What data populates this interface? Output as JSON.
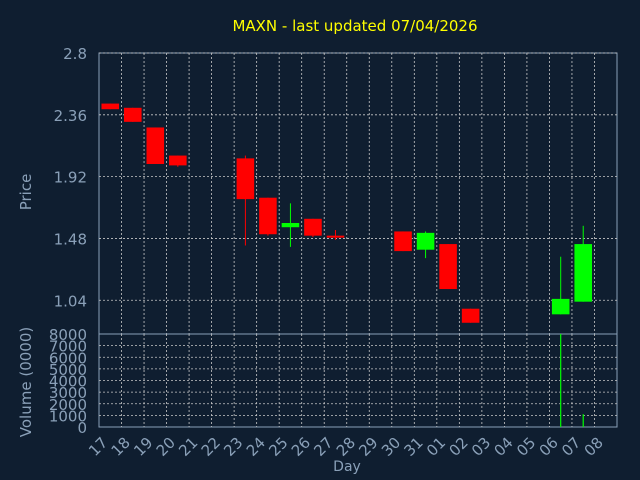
{
  "chart_data": {
    "type": "candlestick",
    "title": "MAXN - last updated 07/04/2026",
    "xlabel": "Day",
    "price_ylabel": "Price",
    "volume_ylabel": "Volume (0000)",
    "price_yticks": [
      "2.8",
      "2.36",
      "1.92",
      "1.48",
      "1.04"
    ],
    "price_ylim": [
      0.8,
      2.8
    ],
    "volume_yticks": [
      "8000",
      "7000",
      "6000",
      "5000",
      "4000",
      "3000",
      "2000",
      "1000",
      "0"
    ],
    "volume_ylim": [
      0,
      8000
    ],
    "x_tick_labels": [
      "17",
      "18",
      "19",
      "20",
      "21",
      "22",
      "23",
      "24",
      "25",
      "26",
      "27",
      "28",
      "29",
      "30",
      "31",
      "01",
      "02",
      "03",
      "04",
      "05",
      "06",
      "07",
      "08"
    ],
    "grid": true,
    "colors": {
      "background": "#0f1e30",
      "plot_background": "#0f1e30",
      "up": "#00ff00",
      "down": "#ff0000",
      "title": "#ffff00",
      "axis_text": "#8aa0b8",
      "grid": "#c8c8c8"
    },
    "candles": [
      {
        "day": "17",
        "open": 2.44,
        "high": 2.44,
        "low": 2.4,
        "close": 2.4
      },
      {
        "day": "18",
        "open": 2.41,
        "high": 2.41,
        "low": 2.31,
        "close": 2.31
      },
      {
        "day": "19",
        "open": 2.27,
        "high": 2.27,
        "low": 2.01,
        "close": 2.01
      },
      {
        "day": "20",
        "open": 2.07,
        "high": 2.07,
        "low": 1.99,
        "close": 2.0
      },
      {
        "day": "23",
        "open": 2.05,
        "high": 2.07,
        "low": 1.43,
        "close": 1.76
      },
      {
        "day": "24",
        "open": 1.77,
        "high": 1.77,
        "low": 1.5,
        "close": 1.51
      },
      {
        "day": "25",
        "open": 1.56,
        "high": 1.73,
        "low": 1.42,
        "close": 1.59
      },
      {
        "day": "26",
        "open": 1.62,
        "high": 1.62,
        "low": 1.49,
        "close": 1.5
      },
      {
        "day": "27",
        "open": 1.5,
        "high": 1.54,
        "low": 1.47,
        "close": 1.49
      },
      {
        "day": "30",
        "open": 1.53,
        "high": 1.53,
        "low": 1.39,
        "close": 1.39
      },
      {
        "day": "31",
        "open": 1.4,
        "high": 1.53,
        "low": 1.34,
        "close": 1.52
      },
      {
        "day": "01",
        "open": 1.44,
        "high": 1.44,
        "low": 1.12,
        "close": 1.12
      },
      {
        "day": "02",
        "open": 0.98,
        "high": 0.98,
        "low": 0.88,
        "close": 0.88
      },
      {
        "day": "06",
        "open": 0.94,
        "high": 1.35,
        "low": 0.94,
        "close": 1.05
      },
      {
        "day": "07",
        "open": 1.03,
        "high": 1.57,
        "low": 1.03,
        "close": 1.44
      }
    ],
    "volume": [
      {
        "day": "06",
        "value": 8000,
        "color": "#00ff00"
      },
      {
        "day": "07",
        "value": 1100,
        "color": "#00ff00"
      }
    ]
  }
}
